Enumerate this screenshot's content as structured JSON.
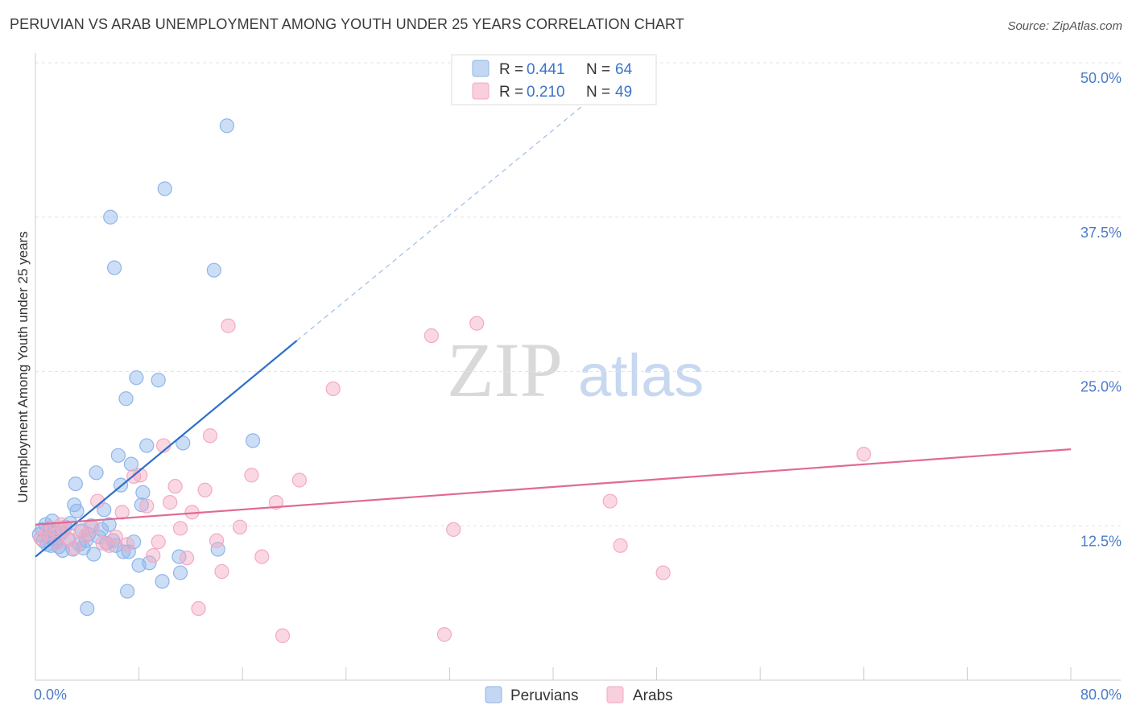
{
  "title": "PERUVIAN VS ARAB UNEMPLOYMENT AMONG YOUTH UNDER 25 YEARS CORRELATION CHART",
  "source": "Source: ZipAtlas.com",
  "watermark": {
    "zip": "ZIP",
    "atlas": "atlas"
  },
  "chart_data": {
    "type": "scatter",
    "ylabel": "Unemployment Among Youth under 25 years",
    "xlim": [
      0,
      80
    ],
    "ylim": [
      0,
      50
    ],
    "x_tick_labels": [
      "0.0%",
      "80.0%"
    ],
    "y_ticks": [
      12.5,
      25.0,
      37.5,
      50.0
    ],
    "y_tick_labels": [
      "12.5%",
      "25.0%",
      "37.5%",
      "50.0%"
    ],
    "grid": true,
    "legend_position": "top-center",
    "series": [
      {
        "name": "Peruvians",
        "color": "#8fb5ea",
        "line_color": "#2e6fcc",
        "R": "0.441",
        "N": "64",
        "trend": {
          "x0": 0,
          "y0": 10.0,
          "x1": 20.2,
          "y1": 27.5,
          "dash_x1": 44,
          "dash_y1": 48.0
        },
        "points": [
          [
            0.3,
            11.8
          ],
          [
            0.5,
            12.2
          ],
          [
            0.6,
            11.3
          ],
          [
            0.8,
            12.6
          ],
          [
            0.9,
            11.0
          ],
          [
            1.0,
            11.6
          ],
          [
            1.1,
            12.3
          ],
          [
            1.2,
            10.9
          ],
          [
            1.4,
            11.5
          ],
          [
            1.5,
            12.0
          ],
          [
            1.6,
            11.2
          ],
          [
            1.8,
            10.8
          ],
          [
            2.0,
            11.9
          ],
          [
            2.1,
            10.5
          ],
          [
            2.3,
            12.4
          ],
          [
            2.5,
            11.4
          ],
          [
            2.7,
            12.7
          ],
          [
            2.9,
            10.6
          ],
          [
            3.0,
            14.2
          ],
          [
            3.2,
            13.7
          ],
          [
            3.4,
            11.0
          ],
          [
            3.6,
            12.1
          ],
          [
            3.7,
            10.7
          ],
          [
            3.9,
            11.3
          ],
          [
            4.1,
            11.8
          ],
          [
            4.3,
            12.5
          ],
          [
            4.5,
            10.2
          ],
          [
            4.7,
            16.8
          ],
          [
            4.9,
            11.6
          ],
          [
            5.1,
            12.2
          ],
          [
            5.3,
            13.8
          ],
          [
            5.5,
            11.1
          ],
          [
            5.7,
            12.6
          ],
          [
            6.0,
            11.3
          ],
          [
            6.2,
            10.9
          ],
          [
            6.4,
            18.2
          ],
          [
            6.6,
            15.8
          ],
          [
            6.8,
            10.4
          ],
          [
            7.0,
            22.8
          ],
          [
            7.2,
            10.4
          ],
          [
            7.4,
            17.5
          ],
          [
            7.6,
            11.2
          ],
          [
            7.8,
            24.5
          ],
          [
            8.0,
            9.3
          ],
          [
            8.2,
            14.2
          ],
          [
            8.3,
            15.2
          ],
          [
            8.6,
            19.0
          ],
          [
            8.8,
            9.5
          ],
          [
            9.5,
            24.3
          ],
          [
            9.8,
            8.0
          ],
          [
            10.0,
            39.8
          ],
          [
            11.1,
            10.0
          ],
          [
            11.2,
            8.7
          ],
          [
            11.4,
            19.2
          ],
          [
            13.8,
            33.2
          ],
          [
            14.1,
            10.6
          ],
          [
            14.8,
            44.9
          ],
          [
            16.8,
            19.4
          ],
          [
            5.8,
            37.5
          ],
          [
            6.1,
            33.4
          ],
          [
            4.0,
            5.8
          ],
          [
            7.1,
            7.2
          ],
          [
            1.3,
            12.9
          ],
          [
            3.1,
            15.9
          ]
        ]
      },
      {
        "name": "Arabs",
        "color": "#f4a9c2",
        "line_color": "#e06a93",
        "R": "0.210",
        "N": "49",
        "trend": {
          "x0": 0,
          "y0": 12.6,
          "x1": 80,
          "y1": 18.7
        },
        "points": [
          [
            0.4,
            11.5
          ],
          [
            0.9,
            11.9
          ],
          [
            1.3,
            12.3
          ],
          [
            1.7,
            11.1
          ],
          [
            2.2,
            12.1
          ],
          [
            2.6,
            11.4
          ],
          [
            3.0,
            10.7
          ],
          [
            3.5,
            12.0
          ],
          [
            3.9,
            11.7
          ],
          [
            4.4,
            12.4
          ],
          [
            4.8,
            14.5
          ],
          [
            5.2,
            11.1
          ],
          [
            5.7,
            10.9
          ],
          [
            6.2,
            11.6
          ],
          [
            6.7,
            13.6
          ],
          [
            7.1,
            11.0
          ],
          [
            7.6,
            16.5
          ],
          [
            8.1,
            16.6
          ],
          [
            8.6,
            14.1
          ],
          [
            9.1,
            10.1
          ],
          [
            9.5,
            11.2
          ],
          [
            9.9,
            19.0
          ],
          [
            10.4,
            14.4
          ],
          [
            10.8,
            15.7
          ],
          [
            11.2,
            12.3
          ],
          [
            11.7,
            9.9
          ],
          [
            12.1,
            13.6
          ],
          [
            12.6,
            5.8
          ],
          [
            13.1,
            15.4
          ],
          [
            13.5,
            19.8
          ],
          [
            14.0,
            11.3
          ],
          [
            14.4,
            8.8
          ],
          [
            14.9,
            28.7
          ],
          [
            15.8,
            12.4
          ],
          [
            16.7,
            16.6
          ],
          [
            17.5,
            10.0
          ],
          [
            18.6,
            14.4
          ],
          [
            19.1,
            3.6
          ],
          [
            20.4,
            16.2
          ],
          [
            23.0,
            23.6
          ],
          [
            30.6,
            27.9
          ],
          [
            31.6,
            3.7
          ],
          [
            32.3,
            12.2
          ],
          [
            34.1,
            28.9
          ],
          [
            44.4,
            14.5
          ],
          [
            45.2,
            10.9
          ],
          [
            48.5,
            8.7
          ],
          [
            64.0,
            18.3
          ],
          [
            2.0,
            12.6
          ]
        ]
      }
    ]
  }
}
